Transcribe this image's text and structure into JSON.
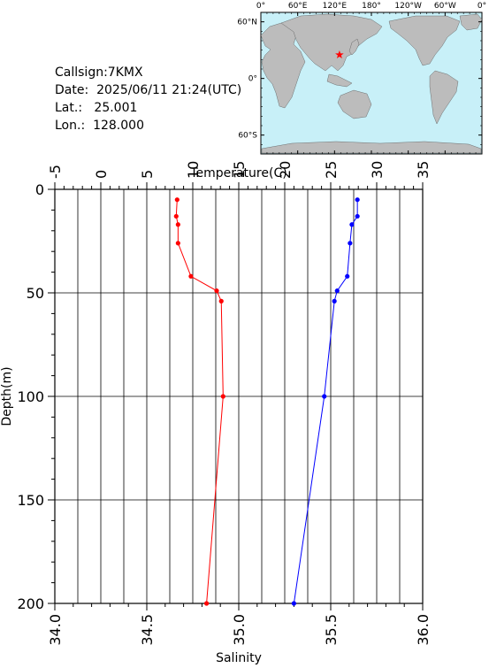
{
  "station": {
    "callsign_label": "Callsign:",
    "callsign": "7KMX",
    "date_label": "Date:",
    "date": "2025/06/11 21:24(UTC)",
    "lat_label": "Lat.:",
    "lat": "25.001",
    "lon_label": "Lon.:",
    "lon": "128.000"
  },
  "map": {
    "lon_labels": [
      "0°",
      "60°E",
      "120°E",
      "180°",
      "120°W",
      "60°W",
      "0°"
    ],
    "lat_labels": [
      "60°N",
      "0°",
      "60°S"
    ],
    "ocean_color": "#c8f0f8",
    "land_color": "#bcbcbc",
    "marker_color": "#ff0000",
    "marker_icon": "star-icon"
  },
  "chart_data": {
    "type": "line",
    "title": "",
    "temperature_axis": {
      "label": "Temperature(C)",
      "range": [
        -5,
        35
      ],
      "ticks": [
        "-5",
        "0",
        "5",
        "10",
        "15",
        "20",
        "25",
        "30",
        "35"
      ]
    },
    "salinity_axis": {
      "label": "Salinity",
      "range": [
        34.0,
        36.0
      ],
      "ticks": [
        "34.0",
        "34.5",
        "35.0",
        "35.5",
        "36.0"
      ]
    },
    "depth_axis": {
      "label": "Depth(m)",
      "range": [
        0,
        200
      ],
      "ticks": [
        "0",
        "50",
        "100",
        "150",
        "200"
      ]
    },
    "grid": true,
    "series": [
      {
        "color": "#ff0000",
        "axis": "temperature",
        "points": [
          [
            8.3,
            5
          ],
          [
            8.2,
            13
          ],
          [
            8.4,
            17
          ],
          [
            8.4,
            26
          ],
          [
            9.8,
            42
          ],
          [
            12.6,
            49
          ],
          [
            13.1,
            54
          ],
          [
            13.3,
            100
          ],
          [
            11.5,
            200
          ]
        ]
      },
      {
        "color": "#0000ff",
        "axis": "temperature",
        "points": [
          [
            27.9,
            5
          ],
          [
            27.9,
            13
          ],
          [
            27.3,
            17
          ],
          [
            27.1,
            26
          ],
          [
            26.8,
            42
          ],
          [
            25.7,
            49
          ],
          [
            25.4,
            54
          ],
          [
            24.3,
            100
          ],
          [
            21.0,
            200
          ]
        ]
      }
    ]
  }
}
